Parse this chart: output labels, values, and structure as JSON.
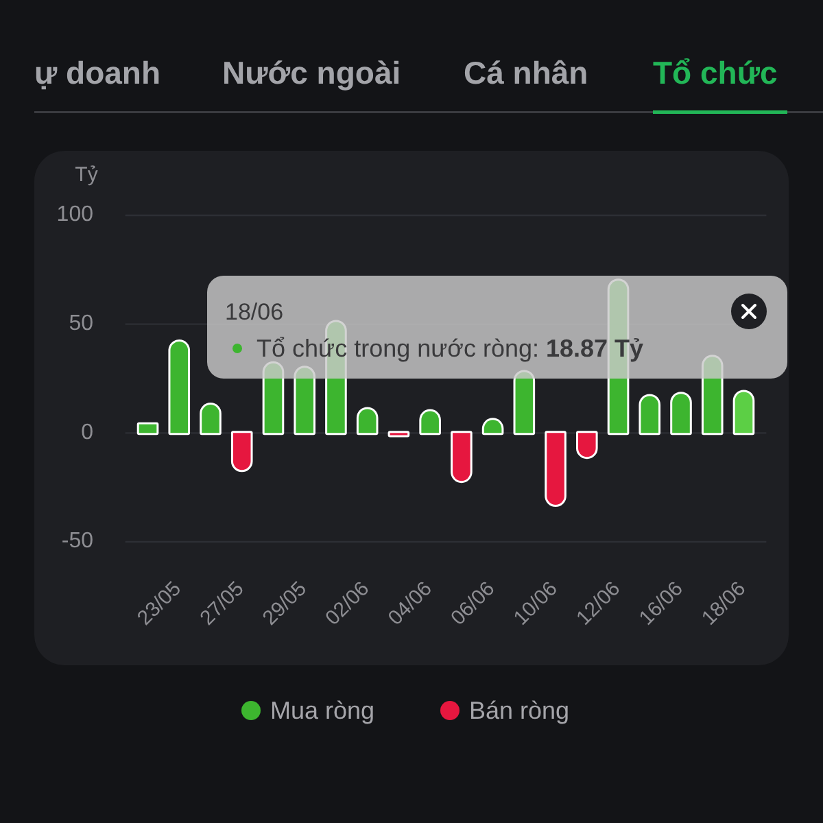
{
  "chart_data": {
    "type": "bar",
    "title": "Tổ chức",
    "ylabel": "Tỷ",
    "categories": [
      null,
      "23/05",
      null,
      "27/05",
      null,
      "29/05",
      null,
      "02/06",
      null,
      "04/06",
      null,
      "06/06",
      null,
      "10/06",
      null,
      "12/06",
      null,
      "16/06",
      null,
      "18/06"
    ],
    "series": [
      {
        "name": "Mua ròng",
        "color": "#3db52f",
        "colors": [
          "#3db52f",
          "#3db52f",
          "#3db52f",
          null,
          "#3db52f",
          "#3db52f",
          "#3db52f",
          "#3db52f",
          null,
          "#3db52f",
          null,
          "#3db52f",
          "#3db52f",
          null,
          null,
          "#3db52f",
          "#3db52f",
          "#3db52f",
          "#3db52f",
          "#5ccf45"
        ],
        "values": [
          4,
          42,
          13,
          null,
          32,
          30,
          51,
          11,
          null,
          10,
          null,
          6,
          28,
          null,
          null,
          70,
          17,
          18,
          35,
          18.87
        ]
      },
      {
        "name": "Bán ròng",
        "color": "#e6173f",
        "values": [
          null,
          null,
          null,
          -17,
          null,
          null,
          null,
          null,
          -1,
          null,
          -22,
          null,
          null,
          -33,
          -11,
          null,
          null,
          null,
          null,
          null
        ]
      }
    ],
    "stacked": true,
    "ylim": [
      -50,
      100
    ],
    "yticks": [
      -50,
      0,
      50,
      100
    ],
    "grid": "y",
    "legend": "bottom",
    "annotations": [
      "ự doanh",
      "Nước ngoài",
      "Cá nhân",
      "18/06",
      "Tổ chức trong nước ròng:",
      "18.87 Tỷ"
    ]
  }
}
